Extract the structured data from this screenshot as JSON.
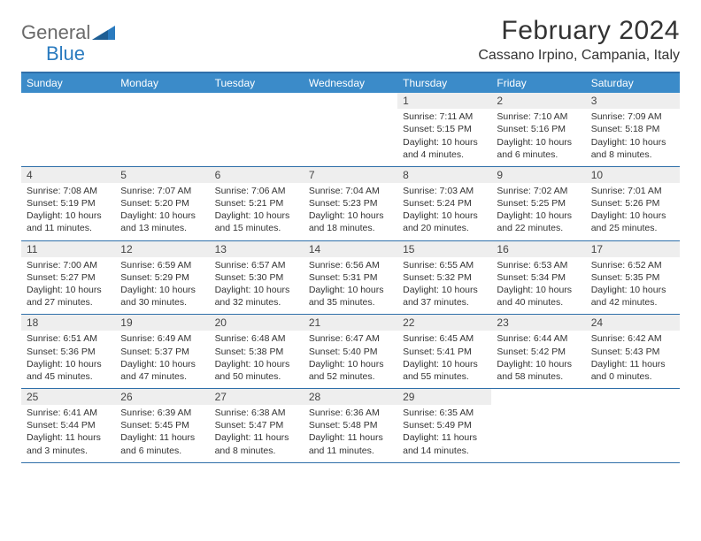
{
  "brand": {
    "part1": "General",
    "part2": "Blue"
  },
  "colors": {
    "header_bg": "#3b8bc9",
    "header_text": "#ffffff",
    "rule": "#2f6fa9",
    "daynum_bg": "#eeeeee",
    "text": "#333333",
    "logo_gray": "#6a6a6a",
    "logo_blue": "#2a7bbf",
    "page_bg": "#ffffff"
  },
  "title": "February 2024",
  "location": "Cassano Irpino, Campania, Italy",
  "weekdays": [
    "Sunday",
    "Monday",
    "Tuesday",
    "Wednesday",
    "Thursday",
    "Friday",
    "Saturday"
  ],
  "weeks": [
    [
      null,
      null,
      null,
      null,
      {
        "n": "1",
        "sr": "7:11 AM",
        "ss": "5:15 PM",
        "dl": "10 hours and 4 minutes."
      },
      {
        "n": "2",
        "sr": "7:10 AM",
        "ss": "5:16 PM",
        "dl": "10 hours and 6 minutes."
      },
      {
        "n": "3",
        "sr": "7:09 AM",
        "ss": "5:18 PM",
        "dl": "10 hours and 8 minutes."
      }
    ],
    [
      {
        "n": "4",
        "sr": "7:08 AM",
        "ss": "5:19 PM",
        "dl": "10 hours and 11 minutes."
      },
      {
        "n": "5",
        "sr": "7:07 AM",
        "ss": "5:20 PM",
        "dl": "10 hours and 13 minutes."
      },
      {
        "n": "6",
        "sr": "7:06 AM",
        "ss": "5:21 PM",
        "dl": "10 hours and 15 minutes."
      },
      {
        "n": "7",
        "sr": "7:04 AM",
        "ss": "5:23 PM",
        "dl": "10 hours and 18 minutes."
      },
      {
        "n": "8",
        "sr": "7:03 AM",
        "ss": "5:24 PM",
        "dl": "10 hours and 20 minutes."
      },
      {
        "n": "9",
        "sr": "7:02 AM",
        "ss": "5:25 PM",
        "dl": "10 hours and 22 minutes."
      },
      {
        "n": "10",
        "sr": "7:01 AM",
        "ss": "5:26 PM",
        "dl": "10 hours and 25 minutes."
      }
    ],
    [
      {
        "n": "11",
        "sr": "7:00 AM",
        "ss": "5:27 PM",
        "dl": "10 hours and 27 minutes."
      },
      {
        "n": "12",
        "sr": "6:59 AM",
        "ss": "5:29 PM",
        "dl": "10 hours and 30 minutes."
      },
      {
        "n": "13",
        "sr": "6:57 AM",
        "ss": "5:30 PM",
        "dl": "10 hours and 32 minutes."
      },
      {
        "n": "14",
        "sr": "6:56 AM",
        "ss": "5:31 PM",
        "dl": "10 hours and 35 minutes."
      },
      {
        "n": "15",
        "sr": "6:55 AM",
        "ss": "5:32 PM",
        "dl": "10 hours and 37 minutes."
      },
      {
        "n": "16",
        "sr": "6:53 AM",
        "ss": "5:34 PM",
        "dl": "10 hours and 40 minutes."
      },
      {
        "n": "17",
        "sr": "6:52 AM",
        "ss": "5:35 PM",
        "dl": "10 hours and 42 minutes."
      }
    ],
    [
      {
        "n": "18",
        "sr": "6:51 AM",
        "ss": "5:36 PM",
        "dl": "10 hours and 45 minutes."
      },
      {
        "n": "19",
        "sr": "6:49 AM",
        "ss": "5:37 PM",
        "dl": "10 hours and 47 minutes."
      },
      {
        "n": "20",
        "sr": "6:48 AM",
        "ss": "5:38 PM",
        "dl": "10 hours and 50 minutes."
      },
      {
        "n": "21",
        "sr": "6:47 AM",
        "ss": "5:40 PM",
        "dl": "10 hours and 52 minutes."
      },
      {
        "n": "22",
        "sr": "6:45 AM",
        "ss": "5:41 PM",
        "dl": "10 hours and 55 minutes."
      },
      {
        "n": "23",
        "sr": "6:44 AM",
        "ss": "5:42 PM",
        "dl": "10 hours and 58 minutes."
      },
      {
        "n": "24",
        "sr": "6:42 AM",
        "ss": "5:43 PM",
        "dl": "11 hours and 0 minutes."
      }
    ],
    [
      {
        "n": "25",
        "sr": "6:41 AM",
        "ss": "5:44 PM",
        "dl": "11 hours and 3 minutes."
      },
      {
        "n": "26",
        "sr": "6:39 AM",
        "ss": "5:45 PM",
        "dl": "11 hours and 6 minutes."
      },
      {
        "n": "27",
        "sr": "6:38 AM",
        "ss": "5:47 PM",
        "dl": "11 hours and 8 minutes."
      },
      {
        "n": "28",
        "sr": "6:36 AM",
        "ss": "5:48 PM",
        "dl": "11 hours and 11 minutes."
      },
      {
        "n": "29",
        "sr": "6:35 AM",
        "ss": "5:49 PM",
        "dl": "11 hours and 14 minutes."
      },
      null,
      null
    ]
  ],
  "labels": {
    "sunrise": "Sunrise:",
    "sunset": "Sunset:",
    "daylight": "Daylight:"
  }
}
